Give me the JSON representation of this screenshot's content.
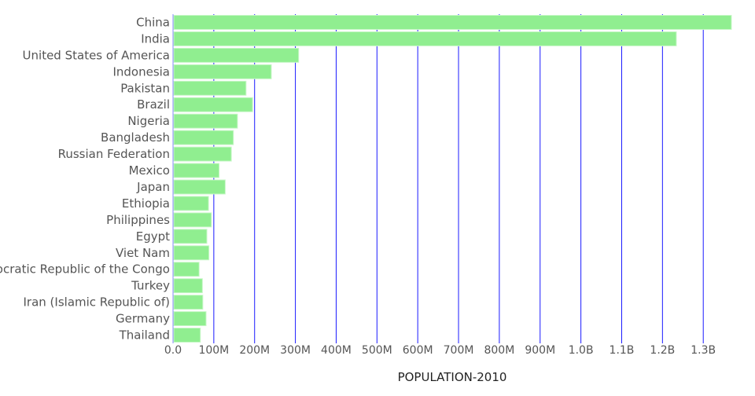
{
  "chart_data": {
    "type": "bar",
    "orientation": "horizontal",
    "title": "",
    "xlabel": "POPULATION-2010",
    "ylabel": "",
    "categories": [
      "China",
      "India",
      "United States of America",
      "Indonesia",
      "Pakistan",
      "Brazil",
      "Nigeria",
      "Bangladesh",
      "Russian Federation",
      "Mexico",
      "Japan",
      "Ethiopia",
      "Philippines",
      "Egypt",
      "Viet Nam",
      "Democratic Republic of the Congo",
      "Turkey",
      "Iran (Islamic Republic of)",
      "Germany",
      "Thailand"
    ],
    "values": [
      1369000000,
      1234000000,
      308000000,
      241000000,
      179000000,
      195000000,
      158000000,
      148000000,
      143000000,
      113000000,
      128000000,
      87000000,
      94000000,
      83000000,
      88000000,
      64000000,
      72000000,
      73000000,
      81000000,
      67000000
    ],
    "xlim": [
      0,
      1369000000
    ],
    "xticks": [
      0,
      100000000,
      200000000,
      300000000,
      400000000,
      500000000,
      600000000,
      700000000,
      800000000,
      900000000,
      1000000000,
      1100000000,
      1200000000,
      1300000000
    ],
    "xtick_labels": [
      "0.0",
      "100M",
      "200M",
      "300M",
      "400M",
      "500M",
      "600M",
      "700M",
      "800M",
      "900M",
      "1.0B",
      "1.1B",
      "1.2B",
      "1.3B"
    ],
    "grid": "vertical",
    "legend": "none",
    "colors": {
      "bar": "#90ee90",
      "bar_edge": "#c8f7c8",
      "grid": "#1a1aff",
      "text": "#555555"
    }
  }
}
